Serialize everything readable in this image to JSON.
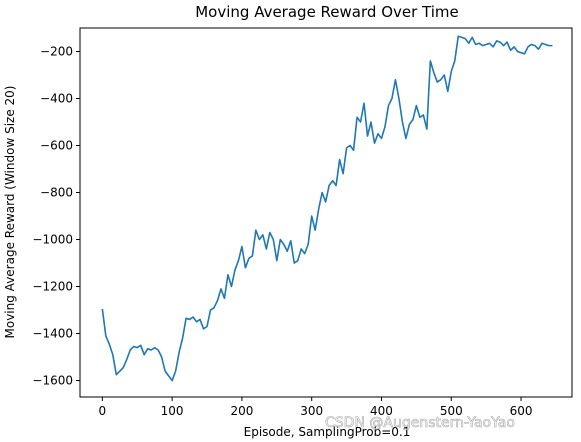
{
  "chart_data": {
    "type": "line",
    "title": "Moving Average Reward Over Time",
    "xlabel": "Episode, SamplingProb=0.1",
    "ylabel": "Moving Average Reward (Window Size 20)",
    "xlim": [
      -32,
      673
    ],
    "ylim": [
      -1670,
      -100
    ],
    "xticks": [
      0,
      100,
      200,
      300,
      400,
      500,
      600
    ],
    "yticks": [
      -1600,
      -1400,
      -1200,
      -1000,
      -800,
      -600,
      -400,
      -200
    ],
    "grid": false,
    "series": [
      {
        "color": "#1f77b4",
        "x": [
          0,
          5,
          10,
          15,
          20,
          25,
          30,
          35,
          40,
          45,
          50,
          55,
          60,
          65,
          70,
          75,
          80,
          85,
          90,
          95,
          100,
          105,
          110,
          115,
          120,
          125,
          130,
          135,
          140,
          145,
          150,
          155,
          160,
          165,
          170,
          175,
          180,
          185,
          190,
          195,
          200,
          205,
          210,
          215,
          220,
          225,
          230,
          235,
          240,
          245,
          250,
          255,
          260,
          265,
          270,
          275,
          280,
          285,
          290,
          295,
          300,
          305,
          310,
          315,
          320,
          325,
          330,
          335,
          340,
          345,
          350,
          355,
          360,
          365,
          370,
          375,
          380,
          385,
          390,
          395,
          400,
          405,
          410,
          415,
          420,
          425,
          430,
          435,
          440,
          445,
          450,
          455,
          460,
          465,
          470,
          475,
          480,
          485,
          490,
          495,
          500,
          505,
          510,
          515,
          520,
          525,
          530,
          535,
          540,
          545,
          550,
          555,
          560,
          565,
          570,
          575,
          580,
          585,
          590,
          595,
          600,
          605,
          610,
          615,
          620,
          625,
          630,
          635,
          640,
          645
        ],
        "y": [
          -1295,
          -1410,
          -1445,
          -1490,
          -1575,
          -1560,
          -1545,
          -1510,
          -1470,
          -1455,
          -1460,
          -1450,
          -1490,
          -1465,
          -1470,
          -1460,
          -1470,
          -1500,
          -1560,
          -1580,
          -1600,
          -1560,
          -1480,
          -1420,
          -1335,
          -1340,
          -1330,
          -1350,
          -1340,
          -1380,
          -1370,
          -1300,
          -1290,
          -1260,
          -1210,
          -1250,
          -1150,
          -1200,
          -1130,
          -1090,
          -1030,
          -1120,
          -1080,
          -1070,
          -960,
          -1000,
          -980,
          -1040,
          -970,
          -1000,
          -1090,
          -1000,
          -1020,
          -1050,
          -1005,
          -1100,
          -1090,
          -1040,
          -1060,
          -1020,
          -900,
          -960,
          -870,
          -800,
          -840,
          -770,
          -750,
          -770,
          -660,
          -720,
          -610,
          -600,
          -620,
          -480,
          -500,
          -420,
          -560,
          -500,
          -590,
          -550,
          -570,
          -520,
          -430,
          -400,
          -320,
          -400,
          -500,
          -570,
          -510,
          -490,
          -430,
          -480,
          -470,
          -530,
          -240,
          -290,
          -330,
          -320,
          -300,
          -370,
          -285,
          -240,
          -135,
          -140,
          -145,
          -165,
          -140,
          -170,
          -165,
          -175,
          -170,
          -165,
          -180,
          -155,
          -160,
          -175,
          -160,
          -195,
          -180,
          -200,
          -205,
          -210,
          -180,
          -170,
          -175,
          -190,
          -165,
          -170,
          -175,
          -175
        ]
      }
    ]
  },
  "watermark": "CSDN @Augenstern-YaoYao"
}
